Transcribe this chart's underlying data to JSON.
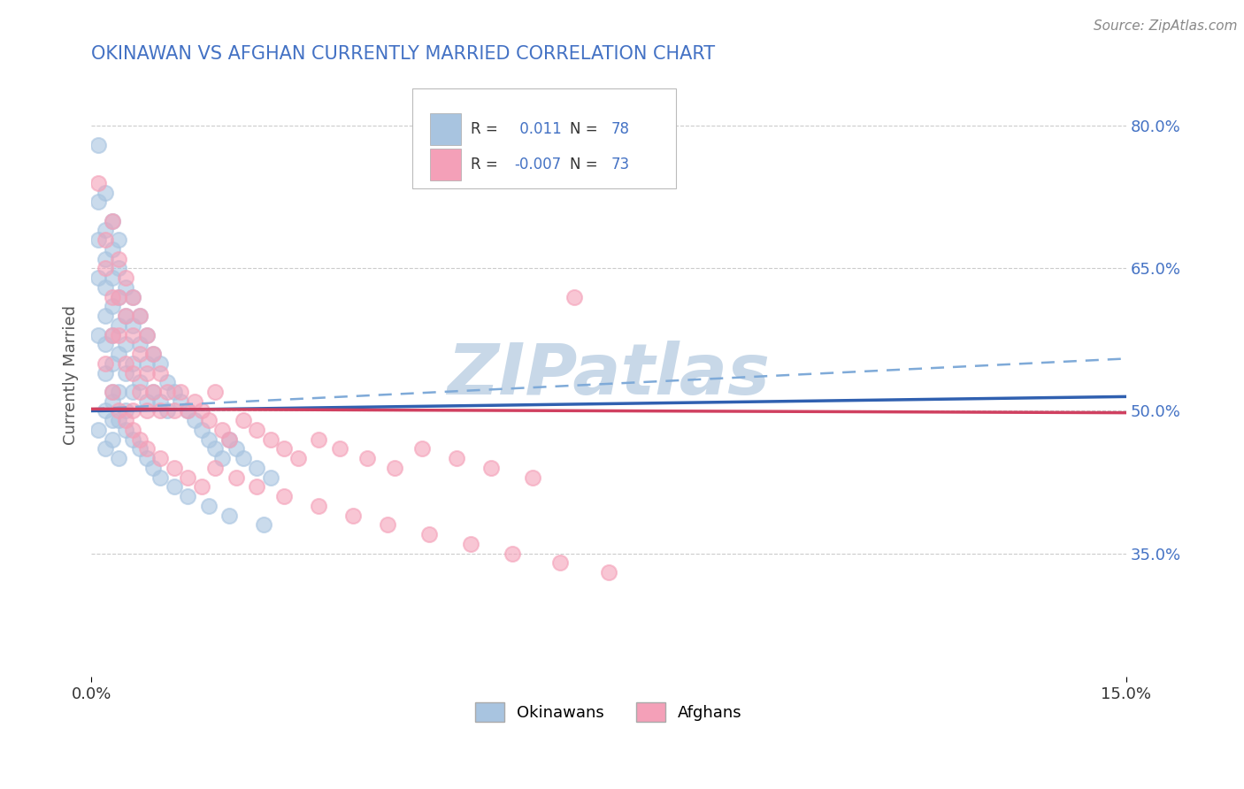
{
  "title": "OKINAWAN VS AFGHAN CURRENTLY MARRIED CORRELATION CHART",
  "source_text": "Source: ZipAtlas.com",
  "ylabel": "Currently Married",
  "xlim": [
    0.0,
    0.15
  ],
  "ylim": [
    0.22,
    0.855
  ],
  "x_tick_labels": [
    "0.0%",
    "15.0%"
  ],
  "y_ticks_right": [
    0.35,
    0.5,
    0.65,
    0.8
  ],
  "y_tick_labels_right": [
    "35.0%",
    "50.0%",
    "65.0%",
    "80.0%"
  ],
  "okinawan_color": "#a8c4e0",
  "afghan_color": "#f4a0b8",
  "okinawan_line_color": "#3060b0",
  "afghan_line_color": "#d04060",
  "okinawan_R": 0.011,
  "okinawan_N": 78,
  "afghan_R": -0.007,
  "afghan_N": 73,
  "legend_label_okinawan": "Okinawans",
  "legend_label_afghan": "Afghans",
  "watermark": "ZIPatlas",
  "watermark_color": "#c8d8e8",
  "title_color": "#4472c4",
  "source_color": "#888888",
  "background_color": "#ffffff",
  "grid_color": "#cccccc",
  "okinawan_x": [
    0.001,
    0.001,
    0.001,
    0.001,
    0.001,
    0.002,
    0.002,
    0.002,
    0.002,
    0.002,
    0.002,
    0.002,
    0.003,
    0.003,
    0.003,
    0.003,
    0.003,
    0.003,
    0.003,
    0.003,
    0.004,
    0.004,
    0.004,
    0.004,
    0.004,
    0.004,
    0.005,
    0.005,
    0.005,
    0.005,
    0.005,
    0.006,
    0.006,
    0.006,
    0.006,
    0.007,
    0.007,
    0.007,
    0.008,
    0.008,
    0.008,
    0.009,
    0.009,
    0.01,
    0.01,
    0.011,
    0.011,
    0.012,
    0.013,
    0.014,
    0.015,
    0.016,
    0.017,
    0.018,
    0.019,
    0.02,
    0.021,
    0.022,
    0.024,
    0.026,
    0.001,
    0.002,
    0.002,
    0.003,
    0.003,
    0.004,
    0.004,
    0.005,
    0.006,
    0.007,
    0.008,
    0.009,
    0.01,
    0.012,
    0.014,
    0.017,
    0.02,
    0.025
  ],
  "okinawan_y": [
    0.78,
    0.72,
    0.68,
    0.64,
    0.58,
    0.73,
    0.69,
    0.66,
    0.63,
    0.6,
    0.57,
    0.54,
    0.7,
    0.67,
    0.64,
    0.61,
    0.58,
    0.55,
    0.52,
    0.49,
    0.68,
    0.65,
    0.62,
    0.59,
    0.56,
    0.52,
    0.63,
    0.6,
    0.57,
    0.54,
    0.5,
    0.62,
    0.59,
    0.55,
    0.52,
    0.6,
    0.57,
    0.53,
    0.58,
    0.55,
    0.51,
    0.56,
    0.52,
    0.55,
    0.51,
    0.53,
    0.5,
    0.52,
    0.51,
    0.5,
    0.49,
    0.48,
    0.47,
    0.46,
    0.45,
    0.47,
    0.46,
    0.45,
    0.44,
    0.43,
    0.48,
    0.5,
    0.46,
    0.51,
    0.47,
    0.49,
    0.45,
    0.48,
    0.47,
    0.46,
    0.45,
    0.44,
    0.43,
    0.42,
    0.41,
    0.4,
    0.39,
    0.38
  ],
  "afghan_x": [
    0.001,
    0.002,
    0.002,
    0.003,
    0.003,
    0.003,
    0.004,
    0.004,
    0.004,
    0.005,
    0.005,
    0.005,
    0.006,
    0.006,
    0.006,
    0.006,
    0.007,
    0.007,
    0.007,
    0.008,
    0.008,
    0.008,
    0.009,
    0.009,
    0.01,
    0.01,
    0.011,
    0.012,
    0.013,
    0.014,
    0.015,
    0.016,
    0.017,
    0.018,
    0.019,
    0.02,
    0.022,
    0.024,
    0.026,
    0.028,
    0.03,
    0.033,
    0.036,
    0.04,
    0.044,
    0.048,
    0.053,
    0.058,
    0.064,
    0.07,
    0.002,
    0.003,
    0.004,
    0.005,
    0.006,
    0.007,
    0.008,
    0.01,
    0.012,
    0.014,
    0.016,
    0.018,
    0.021,
    0.024,
    0.028,
    0.033,
    0.038,
    0.043,
    0.049,
    0.055,
    0.061,
    0.068,
    0.075
  ],
  "afghan_y": [
    0.74,
    0.68,
    0.65,
    0.7,
    0.62,
    0.58,
    0.66,
    0.62,
    0.58,
    0.64,
    0.6,
    0.55,
    0.62,
    0.58,
    0.54,
    0.5,
    0.6,
    0.56,
    0.52,
    0.58,
    0.54,
    0.5,
    0.56,
    0.52,
    0.54,
    0.5,
    0.52,
    0.5,
    0.52,
    0.5,
    0.51,
    0.5,
    0.49,
    0.52,
    0.48,
    0.47,
    0.49,
    0.48,
    0.47,
    0.46,
    0.45,
    0.47,
    0.46,
    0.45,
    0.44,
    0.46,
    0.45,
    0.44,
    0.43,
    0.62,
    0.55,
    0.52,
    0.5,
    0.49,
    0.48,
    0.47,
    0.46,
    0.45,
    0.44,
    0.43,
    0.42,
    0.44,
    0.43,
    0.42,
    0.41,
    0.4,
    0.39,
    0.38,
    0.37,
    0.36,
    0.35,
    0.34,
    0.33
  ]
}
